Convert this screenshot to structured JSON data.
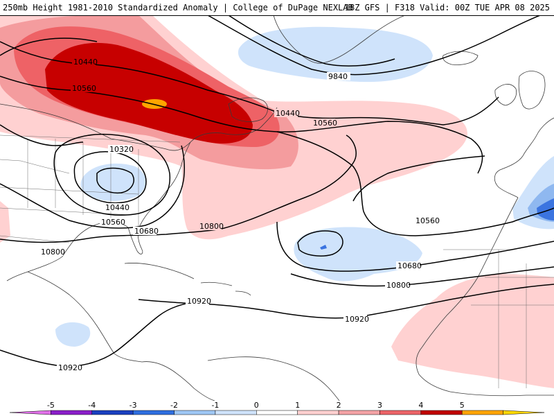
{
  "header": {
    "left_title": "250mb Height 1981-2010 Standardized Anomaly | College of DuPage NEXLAB",
    "right_title": "18Z GFS | F318 Valid: 00Z TUE APR 08 2025"
  },
  "colorbar": {
    "ticks": [
      "-5",
      "-4",
      "-3",
      "-2",
      "-1",
      "0",
      "1",
      "2",
      "3",
      "4",
      "5"
    ],
    "colors": [
      "#e070e8",
      "#8a1fc9",
      "#1a3fbf",
      "#2f6fe0",
      "#9fc7f5",
      "#cfe3fb",
      "#ffffff",
      "#ffd0d0",
      "#f4a3a6",
      "#ec6468",
      "#c00000",
      "#ffa500",
      "#ffd700"
    ]
  },
  "contours": {
    "labels": [
      "10440",
      "10560",
      "10320",
      "10440",
      "10560",
      "10680",
      "10800",
      "10800",
      "10920",
      "10920",
      "9840",
      "10440",
      "10560",
      "10560",
      "10680",
      "10800",
      "10920"
    ]
  },
  "anomaly_colors": {
    "pos1": "#ffd1d1",
    "pos2": "#f49c9e",
    "pos3": "#ee6266",
    "pos4": "#c70000",
    "pos5": "#ffa500",
    "neg1": "#cfe3fb",
    "neg2": "#8fb8f0",
    "neg3": "#3b74e0"
  }
}
